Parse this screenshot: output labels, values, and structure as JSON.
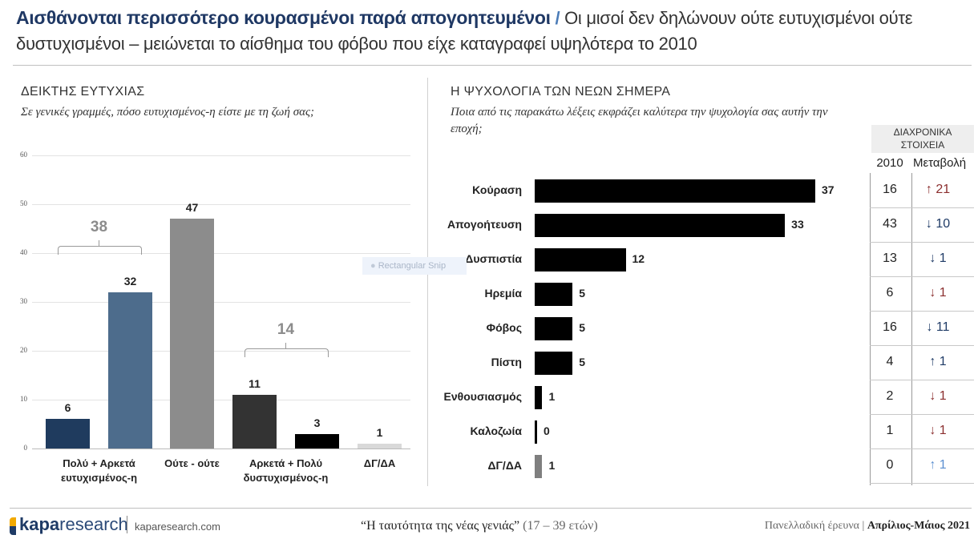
{
  "header": {
    "title_main": "Αισθάνονται περισσότερο κουρασμένοι παρά απογοητευμένοι",
    "separator": "/",
    "title_rest": "Οι μισοί δεν δηλώνουν ούτε ευτυχισμένοι ούτε δυστυχισμένοι – μειώνεται το αίσθημα του φόβου που είχε καταγραφεί υψηλότερα το 2010"
  },
  "overlay": {
    "snip_label": "Rectangular Snip"
  },
  "chart_data": [
    {
      "type": "bar",
      "title": "ΔΕΙΚΤΗΣ ΕΥΤΥΧΙΑΣ",
      "subtitle": "Σε γενικές γραμμές, πόσο ευτυχισμένος-η είστε με τη ζωή σας;",
      "ylim": [
        0,
        60
      ],
      "yticks": [
        "0",
        "10",
        "20",
        "30",
        "40",
        "50",
        "60"
      ],
      "grid": true,
      "bars": [
        {
          "value": 6,
          "label": "6",
          "color": "#1f3b5e"
        },
        {
          "value": 32,
          "label": "32",
          "color": "#4d6c8c"
        },
        {
          "value": 47,
          "label": "47",
          "color": "#8c8c8c"
        },
        {
          "value": 11,
          "label": "11",
          "color": "#333333"
        },
        {
          "value": 3,
          "label": "3",
          "color": "#000000"
        },
        {
          "value": 1,
          "label": "1",
          "color": "#d9d9d9"
        }
      ],
      "categories": [
        {
          "label": "Πολύ + Αρκετά ευτυχισμένος-η",
          "bars": [
            0,
            1
          ]
        },
        {
          "label": "Ούτε - ούτε",
          "bars": [
            2
          ]
        },
        {
          "label": "Αρκετά + Πολύ δυστυχισμένος-η",
          "bars": [
            3,
            4
          ]
        },
        {
          "label": "ΔΓ/ΔΑ",
          "bars": [
            5
          ]
        }
      ],
      "brackets": [
        {
          "label": "38",
          "bars": [
            0,
            1
          ]
        },
        {
          "label": "14",
          "bars": [
            3,
            4
          ]
        }
      ]
    },
    {
      "type": "bar",
      "orientation": "horizontal",
      "title": "Η ΨΥΧΟΛΟΓΙΑ ΤΩΝ ΝΕΩΝ ΣΗΜΕΡΑ",
      "subtitle": "Ποια από τις παρακάτω λέξεις εκφράζει καλύτερα την ψυχολογία σας αυτήν την εποχή;",
      "table_header": "ΔΙΑΧΡΟΝΙΚΑ ΣΤΟΙΧΕΙΑ",
      "col_2010": "2010",
      "col_change": "Μεταβολή",
      "rows": [
        {
          "label": "Κούραση",
          "value": 37,
          "v2010": "16",
          "change": "↑ 21",
          "change_color": "#8b2e2e",
          "bar_color": "#000000"
        },
        {
          "label": "Απογοήτευση",
          "value": 33,
          "v2010": "43",
          "change": "↓ 10",
          "change_color": "#1f3b66",
          "bar_color": "#000000"
        },
        {
          "label": "Δυσπιστία",
          "value": 12,
          "v2010": "13",
          "change": "↓ 1",
          "change_color": "#1f3b66",
          "bar_color": "#000000"
        },
        {
          "label": "Ηρεμία",
          "value": 5,
          "v2010": "6",
          "change": "↓ 1",
          "change_color": "#8b2e2e",
          "bar_color": "#000000"
        },
        {
          "label": "Φόβος",
          "value": 5,
          "v2010": "16",
          "change": "↓ 11",
          "change_color": "#1f3b66",
          "bar_color": "#000000"
        },
        {
          "label": "Πίστη",
          "value": 5,
          "v2010": "4",
          "change": "↑ 1",
          "change_color": "#1f3b66",
          "bar_color": "#000000"
        },
        {
          "label": "Ενθουσιασμός",
          "value": 1,
          "v2010": "2",
          "change": "↓ 1",
          "change_color": "#8b2e2e",
          "bar_color": "#000000"
        },
        {
          "label": "Καλοζωία",
          "value": 0,
          "v2010": "1",
          "change": "↓ 1",
          "change_color": "#8b2e2e",
          "bar_color": "#000000"
        },
        {
          "label": "ΔΓ/ΔΑ",
          "value": 1,
          "v2010": "0",
          "change": "↑ 1",
          "change_color": "#5b8fd0",
          "bar_color": "#7f7f7f"
        }
      ]
    }
  ],
  "footer": {
    "logo_bold": "kapa",
    "logo_light": "research",
    "site": "kaparesearch.com",
    "survey_title": "“Η ταυτότητα της νέας γενιάς”",
    "age_range": "(17 – 39 ετών)",
    "survey_type": "Πανελλαδική έρευνα",
    "period": "Απρίλιος-Μάιος 2021"
  }
}
